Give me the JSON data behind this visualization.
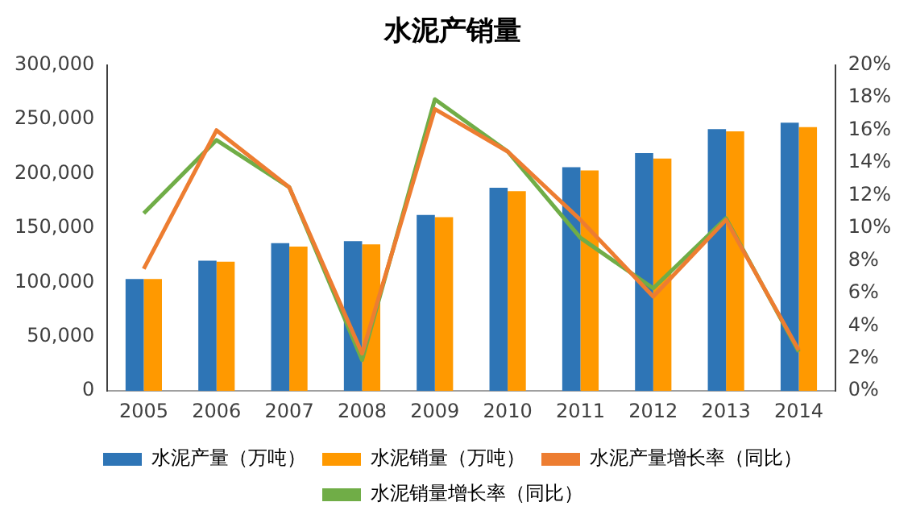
{
  "chart_data": {
    "type": "bar",
    "title": "水泥产销量",
    "categories": [
      "2005",
      "2006",
      "2007",
      "2008",
      "2009",
      "2010",
      "2011",
      "2012",
      "2013",
      "2014"
    ],
    "series": [
      {
        "name": "水泥产量（万吨）",
        "color": "#2e75b6",
        "values": [
          103000,
          120000,
          136000,
          138000,
          162000,
          187000,
          206000,
          219000,
          241000,
          247000
        ]
      },
      {
        "name": "水泥销量（万吨）",
        "color": "#ff9900",
        "values": [
          103000,
          119000,
          133000,
          135000,
          160000,
          184000,
          203000,
          214000,
          239000,
          243000
        ]
      },
      {
        "name": "水泥产量增长率（同比）",
        "type": "line",
        "axis": "y2",
        "color": "#ed7d31",
        "values": [
          7.5,
          16.0,
          12.5,
          2.3,
          17.3,
          14.7,
          10.5,
          5.8,
          10.5,
          2.5
        ]
      },
      {
        "name": "水泥销量增长率（同比）",
        "type": "line",
        "axis": "y2",
        "color": "#70ad47",
        "values": [
          10.9,
          15.4,
          12.5,
          1.9,
          17.9,
          14.7,
          9.4,
          6.3,
          10.6,
          2.4
        ]
      }
    ],
    "ylim": [
      0,
      300000
    ],
    "yticks": [
      {
        "value": 0,
        "label": "0"
      },
      {
        "value": 50000,
        "label": "50,000"
      },
      {
        "value": 100000,
        "label": "100,000"
      },
      {
        "value": 150000,
        "label": "150,000"
      },
      {
        "value": 200000,
        "label": "200,000"
      },
      {
        "value": 250000,
        "label": "250,000"
      },
      {
        "value": 300000,
        "label": "300,000"
      }
    ],
    "y2lim": [
      0,
      20
    ],
    "y2ticks": [
      {
        "value": 0,
        "label": "0%"
      },
      {
        "value": 2,
        "label": "2%"
      },
      {
        "value": 4,
        "label": "4%"
      },
      {
        "value": 6,
        "label": "6%"
      },
      {
        "value": 8,
        "label": "8%"
      },
      {
        "value": 10,
        "label": "10%"
      },
      {
        "value": 12,
        "label": "12%"
      },
      {
        "value": 14,
        "label": "14%"
      },
      {
        "value": 16,
        "label": "16%"
      },
      {
        "value": 18,
        "label": "18%"
      },
      {
        "value": 20,
        "label": "20%"
      }
    ],
    "grid": false,
    "legend": "bottom",
    "marker": "none"
  }
}
